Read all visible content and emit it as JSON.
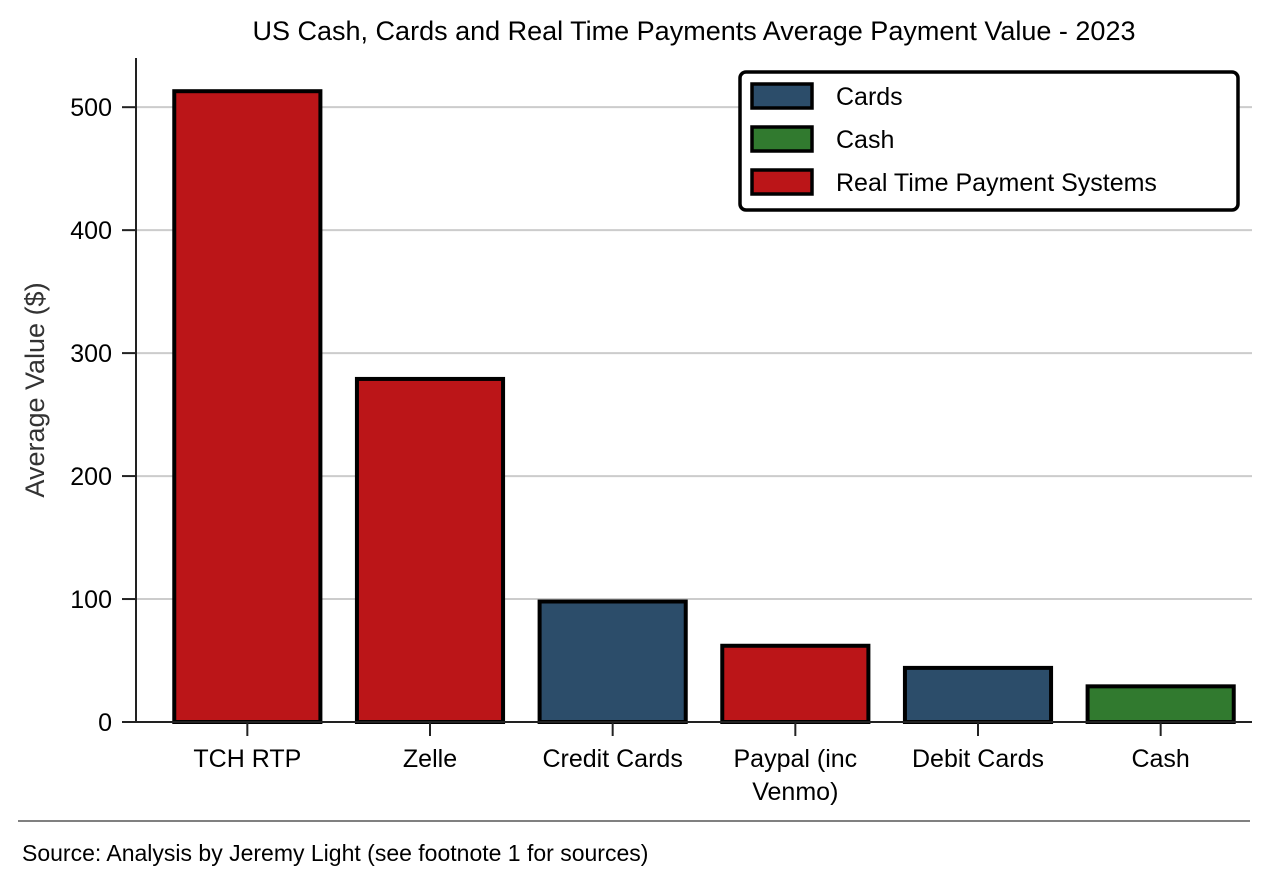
{
  "chart_data": {
    "type": "bar",
    "title": "US Cash, Cards and Real Time Payments Average Payment Value - 2023",
    "xlabel": "",
    "ylabel": "Average Value ($)",
    "ylim": [
      0,
      540
    ],
    "yticks": [
      0,
      100,
      200,
      300,
      400,
      500
    ],
    "grid": "horizontal",
    "legend_position": "top-right",
    "categories": [
      "TCH RTP",
      "Zelle",
      "Credit Cards",
      "Paypal (inc Venmo)",
      "Debit Cards",
      "Cash"
    ],
    "category_label_lines": [
      [
        "TCH RTP"
      ],
      [
        "Zelle"
      ],
      [
        "Credit Cards"
      ],
      [
        "Paypal (inc",
        "Venmo)"
      ],
      [
        "Debit Cards"
      ],
      [
        "Cash"
      ]
    ],
    "values": [
      513,
      279,
      98,
      62,
      44,
      29
    ],
    "groups": [
      "Real Time Payment Systems",
      "Real Time Payment Systems",
      "Cards",
      "Real Time Payment Systems",
      "Cards",
      "Cash"
    ],
    "legend": [
      {
        "name": "Cards",
        "color": "#2c4d6a"
      },
      {
        "name": "Cash",
        "color": "#317a2f"
      },
      {
        "name": "Real Time Payment Systems",
        "color": "#bb1518"
      }
    ]
  },
  "footer": {
    "source": "Source: Analysis by Jeremy Light (see footnote 1 for sources)"
  }
}
